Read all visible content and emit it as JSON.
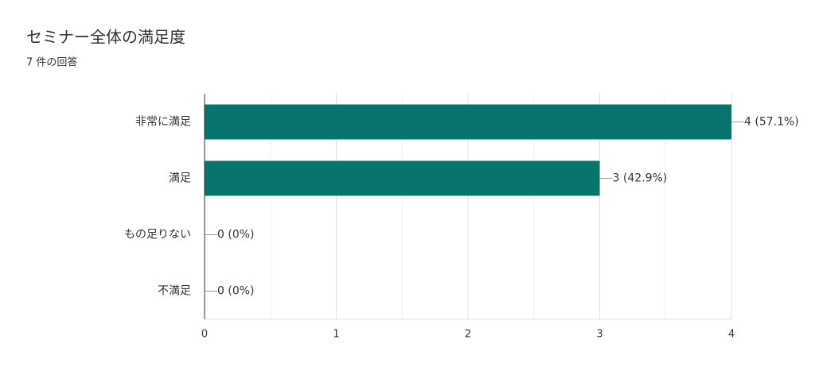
{
  "chart_data": {
    "type": "bar",
    "orientation": "horizontal",
    "title": "セミナー全体の満足度",
    "subtitle": "7 件の回答",
    "categories": [
      "非常に満足",
      "満足",
      "もの足りない",
      "不満足"
    ],
    "values": [
      4,
      3,
      0,
      0
    ],
    "value_labels": [
      "4 (57.1%)",
      "3 (42.9%)",
      "0 (0%)",
      "0 (0%)"
    ],
    "color": "#07756b",
    "xlim": [
      0,
      4
    ],
    "xticks": [
      0,
      1,
      2,
      3,
      4
    ],
    "minor_xticks": [
      0.5,
      1.5,
      2.5,
      3.5
    ],
    "grid": true
  }
}
